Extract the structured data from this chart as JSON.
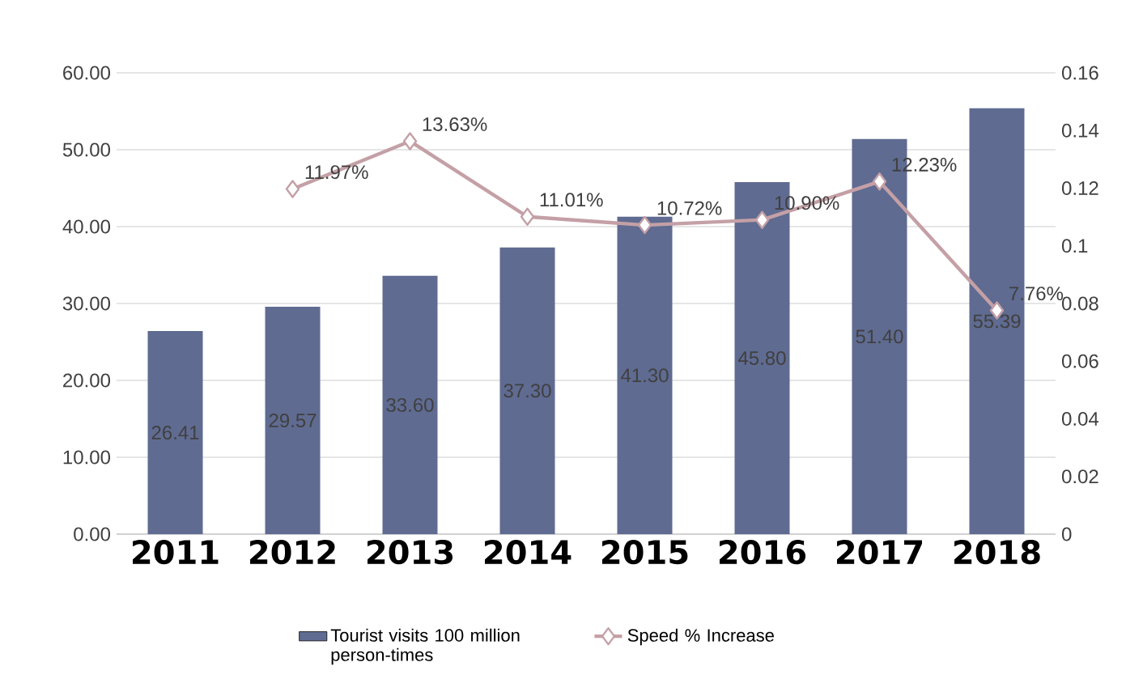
{
  "chart_data": {
    "type": "bar",
    "categories": [
      "2011",
      "2012",
      "2013",
      "2014",
      "2015",
      "2016",
      "2017",
      "2018"
    ],
    "series": [
      {
        "name": "Tourist visits 100 million person-times",
        "color": "#5f6b91",
        "values": [
          26.41,
          29.57,
          33.6,
          37.3,
          41.3,
          45.8,
          51.4,
          55.39
        ],
        "value_labels": [
          "26.41",
          "29.57",
          "33.60",
          "37.30",
          "41.30",
          "45.80",
          "51.40",
          "55.39"
        ]
      },
      {
        "name": "Speed % Increase",
        "type": "line",
        "axis": "y2",
        "marker": "diamond",
        "color": "#c4a0a6",
        "values": [
          null,
          0.1197,
          0.1363,
          0.1101,
          0.1072,
          0.109,
          0.1223,
          0.0776
        ],
        "value_labels": [
          null,
          "11.97%",
          "13.63%",
          "11.01%",
          "10.72%",
          "10.90%",
          "12.23%",
          "7.76%"
        ]
      }
    ],
    "ylim": [
      0,
      60
    ],
    "yticks": [
      {
        "value": 0,
        "label": "0.00"
      },
      {
        "value": 10,
        "label": "10.00"
      },
      {
        "value": 20,
        "label": "20.00"
      },
      {
        "value": 30,
        "label": "30.00"
      },
      {
        "value": 40,
        "label": "40.00"
      },
      {
        "value": 50,
        "label": "50.00"
      },
      {
        "value": 60,
        "label": "60.00"
      }
    ],
    "y2lim": [
      0,
      0.16
    ],
    "y2ticks": [
      0,
      0.02,
      0.04,
      0.06,
      0.08,
      0.1,
      0.12,
      0.14,
      0.16
    ],
    "grid": "y",
    "legend": "bottom"
  }
}
